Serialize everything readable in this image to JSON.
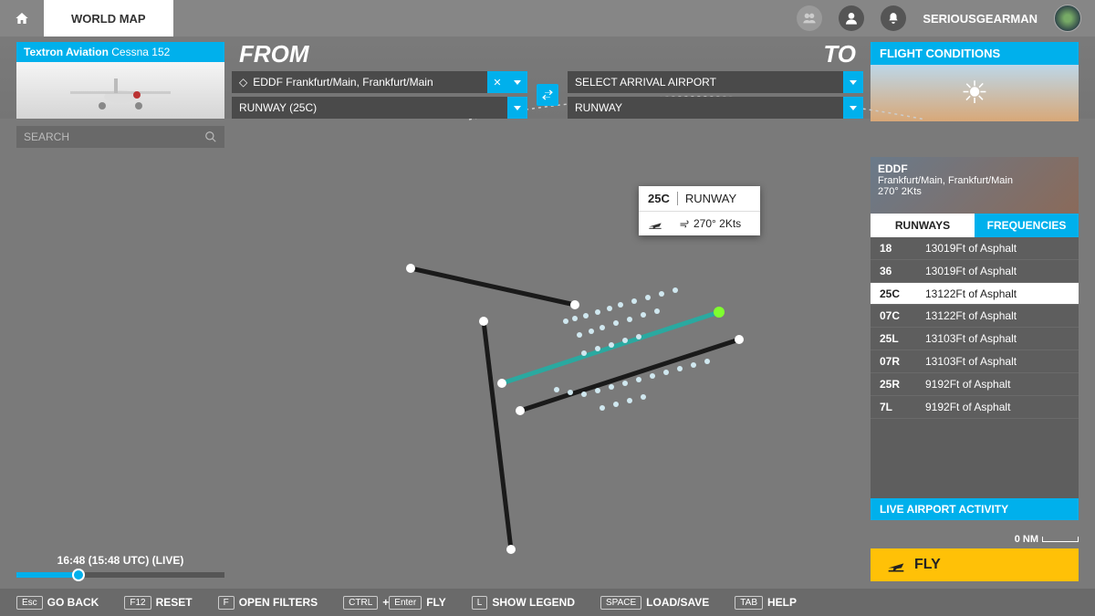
{
  "topbar": {
    "tab_label": "WORLD MAP",
    "username": "SERIOUSGEARMAN"
  },
  "aircraft": {
    "manufacturer": "Textron Aviation",
    "model": "Cessna 152"
  },
  "route": {
    "from_label": "FROM",
    "to_label": "TO",
    "departure": "EDDF Frankfurt/Main, Frankfurt/Main",
    "departure_runway": "RUNWAY (25C)",
    "arrival_placeholder": "SELECT ARRIVAL AIRPORT",
    "arrival_runway": "RUNWAY"
  },
  "conditions": {
    "title": "FLIGHT CONDITIONS"
  },
  "search": {
    "placeholder": "SEARCH"
  },
  "tooltip": {
    "runway": "25C",
    "label": "RUNWAY",
    "wind": "270° 2Kts"
  },
  "airport_info": {
    "icao": "EDDF",
    "name": "Frankfurt/Main, Frankfurt/Main",
    "wind": "270° 2Kts",
    "tabs": {
      "runways": "RUNWAYS",
      "frequencies": "FREQUENCIES"
    },
    "runways": [
      {
        "id": "18",
        "desc": "13019Ft of Asphalt",
        "selected": false
      },
      {
        "id": "36",
        "desc": "13019Ft of Asphalt",
        "selected": false
      },
      {
        "id": "25C",
        "desc": "13122Ft of Asphalt",
        "selected": true
      },
      {
        "id": "07C",
        "desc": "13122Ft of Asphalt",
        "selected": false
      },
      {
        "id": "25L",
        "desc": "13103Ft of Asphalt",
        "selected": false
      },
      {
        "id": "07R",
        "desc": "13103Ft of Asphalt",
        "selected": false
      },
      {
        "id": "25R",
        "desc": "9192Ft of Asphalt",
        "selected": false
      },
      {
        "id": "7L",
        "desc": "9192Ft of Asphalt",
        "selected": false
      }
    ],
    "live_activity": "LIVE AIRPORT ACTIVITY"
  },
  "scale": {
    "value": "0 NM"
  },
  "fly_button": "FLY",
  "time": {
    "label": "16:48 (15:48 UTC) (LIVE)",
    "fill_pct": 30
  },
  "footer": [
    {
      "keys": [
        "Esc"
      ],
      "label": "GO BACK"
    },
    {
      "keys": [
        "F12"
      ],
      "label": "RESET"
    },
    {
      "keys": [
        "F"
      ],
      "label": "OPEN FILTERS"
    },
    {
      "keys": [
        "CTRL",
        "Enter"
      ],
      "join": "+",
      "label": "FLY"
    },
    {
      "keys": [
        "L"
      ],
      "label": "SHOW LEGEND"
    },
    {
      "keys": [
        "SPACE"
      ],
      "label": "LOAD/SAVE"
    },
    {
      "keys": [
        "TAB"
      ],
      "label": "HELP"
    }
  ],
  "colors": {
    "accent": "#00b0ec",
    "fly": "#ffc107",
    "bg": "#7a7a7a"
  }
}
